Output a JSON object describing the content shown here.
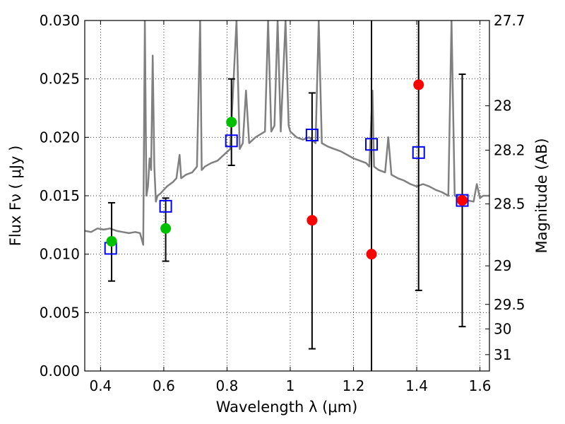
{
  "chart_data": {
    "type": "scatter",
    "title": "",
    "xlabel": "Wavelength  λ (μm)",
    "ylabel": "Flux  Fν  ( μJy )",
    "ylabel_right": "Magnitude (AB)",
    "xlim": [
      0.35,
      1.63
    ],
    "ylim": [
      0.0,
      0.03
    ],
    "grid": true,
    "legend": "none",
    "x_ticks": [
      {
        "value": 0.4,
        "label": "0.4"
      },
      {
        "value": 0.6,
        "label": "0.6"
      },
      {
        "value": 0.8,
        "label": "0.8"
      },
      {
        "value": 1.0,
        "label": "1"
      },
      {
        "value": 1.2,
        "label": "1.2"
      },
      {
        "value": 1.4,
        "label": "1.4"
      },
      {
        "value": 1.6,
        "label": "1.6"
      }
    ],
    "y_ticks": [
      {
        "value": 0.0,
        "label": "0.000"
      },
      {
        "value": 0.005,
        "label": "0.005"
      },
      {
        "value": 0.01,
        "label": "0.010"
      },
      {
        "value": 0.015,
        "label": "0.015"
      },
      {
        "value": 0.02,
        "label": "0.020"
      },
      {
        "value": 0.025,
        "label": "0.025"
      },
      {
        "value": 0.03,
        "label": "0.030"
      }
    ],
    "right_ticks": [
      {
        "flux": 0.03,
        "label": "27.7"
      },
      {
        "flux": 0.0227,
        "label": "28"
      },
      {
        "flux": 0.0189,
        "label": "28.2"
      },
      {
        "flux": 0.0143,
        "label": "28.5"
      },
      {
        "flux": 0.009,
        "label": "29"
      },
      {
        "flux": 0.0057,
        "label": "29.5"
      },
      {
        "flux": 0.0036,
        "label": "30"
      },
      {
        "flux": 0.0014,
        "label": "31"
      }
    ],
    "series": [
      {
        "kind": "line",
        "color": "#808080",
        "points": [
          [
            0.35,
            0.012
          ],
          [
            0.37,
            0.0119
          ],
          [
            0.39,
            0.0122
          ],
          [
            0.41,
            0.0121
          ],
          [
            0.43,
            0.0122
          ],
          [
            0.45,
            0.012
          ],
          [
            0.47,
            0.0119
          ],
          [
            0.49,
            0.0118
          ],
          [
            0.51,
            0.0119
          ],
          [
            0.525,
            0.0118
          ],
          [
            0.535,
            0.0108
          ],
          [
            0.54,
            0.03
          ],
          [
            0.545,
            0.015
          ],
          [
            0.55,
            0.0158
          ],
          [
            0.555,
            0.0182
          ],
          [
            0.56,
            0.0172
          ],
          [
            0.565,
            0.027
          ],
          [
            0.57,
            0.0175
          ],
          [
            0.575,
            0.0145
          ],
          [
            0.58,
            0.015
          ],
          [
            0.59,
            0.0152
          ],
          [
            0.6,
            0.0155
          ],
          [
            0.61,
            0.0158
          ],
          [
            0.62,
            0.016
          ],
          [
            0.63,
            0.0162
          ],
          [
            0.64,
            0.0165
          ],
          [
            0.65,
            0.0185
          ],
          [
            0.655,
            0.0165
          ],
          [
            0.67,
            0.0168
          ],
          [
            0.69,
            0.017
          ],
          [
            0.705,
            0.0175
          ],
          [
            0.715,
            0.03
          ],
          [
            0.72,
            0.0172
          ],
          [
            0.73,
            0.0175
          ],
          [
            0.75,
            0.0178
          ],
          [
            0.77,
            0.018
          ],
          [
            0.79,
            0.0185
          ],
          [
            0.81,
            0.019
          ],
          [
            0.83,
            0.03
          ],
          [
            0.84,
            0.019
          ],
          [
            0.85,
            0.0195
          ],
          [
            0.86,
            0.024
          ],
          [
            0.87,
            0.0195
          ],
          [
            0.89,
            0.02
          ],
          [
            0.92,
            0.0205
          ],
          [
            0.93,
            0.03
          ],
          [
            0.94,
            0.0205
          ],
          [
            0.95,
            0.021
          ],
          [
            0.96,
            0.03
          ],
          [
            0.97,
            0.0205
          ],
          [
            0.985,
            0.03
          ],
          [
            0.995,
            0.021
          ],
          [
            1.0,
            0.0205
          ],
          [
            1.02,
            0.02
          ],
          [
            1.04,
            0.0198
          ],
          [
            1.06,
            0.02
          ],
          [
            1.08,
            0.0195
          ],
          [
            1.09,
            0.03
          ],
          [
            1.1,
            0.0195
          ],
          [
            1.12,
            0.0192
          ],
          [
            1.14,
            0.019
          ],
          [
            1.16,
            0.0188
          ],
          [
            1.18,
            0.0185
          ],
          [
            1.2,
            0.0182
          ],
          [
            1.22,
            0.018
          ],
          [
            1.24,
            0.0178
          ],
          [
            1.25,
            0.0175
          ],
          [
            1.26,
            0.024
          ],
          [
            1.265,
            0.0175
          ],
          [
            1.28,
            0.0172
          ],
          [
            1.3,
            0.017
          ],
          [
            1.31,
            0.02
          ],
          [
            1.32,
            0.0168
          ],
          [
            1.34,
            0.0165
          ],
          [
            1.36,
            0.0163
          ],
          [
            1.38,
            0.016
          ],
          [
            1.4,
            0.0158
          ],
          [
            1.42,
            0.016
          ],
          [
            1.44,
            0.0158
          ],
          [
            1.46,
            0.0155
          ],
          [
            1.48,
            0.0153
          ],
          [
            1.5,
            0.015
          ],
          [
            1.51,
            0.03
          ],
          [
            1.52,
            0.015
          ],
          [
            1.54,
            0.0148
          ],
          [
            1.56,
            0.0146
          ],
          [
            1.58,
            0.0145
          ],
          [
            1.59,
            0.016
          ],
          [
            1.6,
            0.0148
          ],
          [
            1.61,
            0.015
          ],
          [
            1.63,
            0.015
          ]
        ]
      },
      {
        "kind": "open-square",
        "color": "#0000ff",
        "points": [
          {
            "x": 0.432,
            "y": 0.0105
          },
          {
            "x": 0.606,
            "y": 0.0141
          },
          {
            "x": 0.814,
            "y": 0.0197
          },
          {
            "x": 1.069,
            "y": 0.0202
          },
          {
            "x": 1.257,
            "y": 0.0194
          },
          {
            "x": 1.406,
            "y": 0.0187
          },
          {
            "x": 1.544,
            "y": 0.0146
          }
        ]
      },
      {
        "kind": "filled-circle",
        "color": "#00c000",
        "points": [
          {
            "x": 0.435,
            "y": 0.0111,
            "err_low": 0.0077,
            "err_high": 0.0144
          },
          {
            "x": 0.606,
            "y": 0.0122,
            "err_low": 0.0094,
            "err_high": 0.0148
          },
          {
            "x": 0.814,
            "y": 0.0213,
            "err_low": 0.0176,
            "err_high": 0.025
          }
        ]
      },
      {
        "kind": "filled-circle",
        "color": "#ff0000",
        "points": [
          {
            "x": 1.069,
            "y": 0.0129,
            "err_low": 0.0019,
            "err_high": 0.0238
          },
          {
            "x": 1.257,
            "y": 0.01,
            "err_low": 0.0,
            "err_high": 0.03
          },
          {
            "x": 1.406,
            "y": 0.0245,
            "err_low": 0.0069,
            "err_high": 0.03
          },
          {
            "x": 1.544,
            "y": 0.0146,
            "err_low": 0.0038,
            "err_high": 0.0254
          }
        ]
      }
    ]
  }
}
